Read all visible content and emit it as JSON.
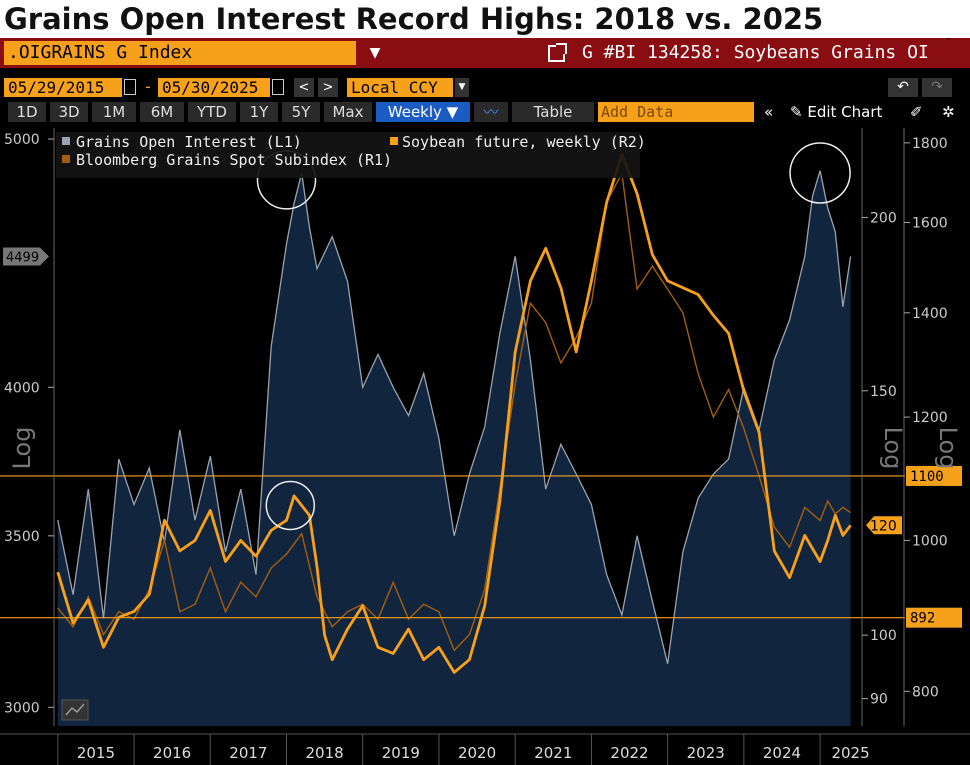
{
  "page_title": "Grains Open Interest Record Highs: 2018 vs. 2025",
  "header": {
    "ticker": ".OIGRAINS G Index",
    "security_title": "G #BI 134258: Soybeans Grains OI"
  },
  "dates": {
    "start": "05/29/2015",
    "end": "05/30/2025",
    "separator": "-"
  },
  "nav": {
    "prev": "<",
    "next": ">"
  },
  "currency": "Local CCY",
  "undo": "↶",
  "redo": "↷",
  "toolbar": {
    "periods": [
      "1D",
      "3D",
      "1M",
      "6M",
      "YTD",
      "1Y",
      "5Y",
      "Max"
    ],
    "frequency": "Weekly ▼",
    "table": "Table",
    "add_data_placeholder": "Add Data",
    "collapse": "«",
    "edit_chart": "✎ Edit Chart"
  },
  "chart_data": {
    "type": "line",
    "title": "Grains Open Interest Record Highs: 2018 vs. 2025",
    "x_labels": [
      "2015",
      "2016",
      "2017",
      "2018",
      "2019",
      "2020",
      "2021",
      "2022",
      "2023",
      "2024",
      "2025"
    ],
    "left_axis": {
      "label": "Log",
      "ticks": [
        "5000",
        "4000",
        "3500",
        "3000"
      ],
      "scale": "log",
      "range": [
        2950,
        5050
      ],
      "last_value": "4499"
    },
    "r2_axis": {
      "label": "Log",
      "ticks": [
        "200",
        "150",
        "100",
        "90"
      ],
      "scale": "log",
      "range": [
        86,
        232
      ],
      "last_value": "120"
    },
    "r1_axis": {
      "label": "Log",
      "ticks": [
        "1800",
        "1600",
        "1400",
        "1200",
        "1000",
        "800"
      ],
      "scale": "log",
      "range": [
        760,
        1840
      ],
      "last_value": "1042¼"
    },
    "horizontal_lines": [
      {
        "label": "1100",
        "value": 1100
      },
      {
        "label": "892",
        "value": 892
      }
    ],
    "legend_position": "top-left",
    "series": [
      {
        "name": "Grains Open Interest (L1)",
        "axis": "left",
        "color": "#9aa3ad",
        "fill": "#12253f",
        "points": [
          [
            2015.0,
            3550
          ],
          [
            2015.2,
            3320
          ],
          [
            2015.4,
            3650
          ],
          [
            2015.6,
            3250
          ],
          [
            2015.8,
            3750
          ],
          [
            2016.0,
            3600
          ],
          [
            2016.2,
            3720
          ],
          [
            2016.4,
            3480
          ],
          [
            2016.6,
            3850
          ],
          [
            2016.8,
            3550
          ],
          [
            2017.0,
            3760
          ],
          [
            2017.2,
            3450
          ],
          [
            2017.4,
            3650
          ],
          [
            2017.6,
            3380
          ],
          [
            2017.8,
            4150
          ],
          [
            2018.0,
            4550
          ],
          [
            2018.1,
            4720
          ],
          [
            2018.2,
            4850
          ],
          [
            2018.3,
            4620
          ],
          [
            2018.4,
            4450
          ],
          [
            2018.6,
            4580
          ],
          [
            2018.8,
            4400
          ],
          [
            2019.0,
            4000
          ],
          [
            2019.2,
            4120
          ],
          [
            2019.4,
            4000
          ],
          [
            2019.6,
            3900
          ],
          [
            2019.8,
            4050
          ],
          [
            2020.0,
            3820
          ],
          [
            2020.2,
            3500
          ],
          [
            2020.4,
            3700
          ],
          [
            2020.6,
            3860
          ],
          [
            2020.8,
            4200
          ],
          [
            2021.0,
            4500
          ],
          [
            2021.2,
            4100
          ],
          [
            2021.4,
            3650
          ],
          [
            2021.6,
            3800
          ],
          [
            2021.8,
            3700
          ],
          [
            2022.0,
            3600
          ],
          [
            2022.2,
            3380
          ],
          [
            2022.4,
            3260
          ],
          [
            2022.6,
            3500
          ],
          [
            2022.8,
            3300
          ],
          [
            2023.0,
            3120
          ],
          [
            2023.2,
            3450
          ],
          [
            2023.4,
            3620
          ],
          [
            2023.6,
            3700
          ],
          [
            2023.8,
            3750
          ],
          [
            2024.0,
            4000
          ],
          [
            2024.2,
            3850
          ],
          [
            2024.4,
            4100
          ],
          [
            2024.6,
            4250
          ],
          [
            2024.8,
            4500
          ],
          [
            2024.9,
            4750
          ],
          [
            2025.0,
            4860
          ],
          [
            2025.1,
            4700
          ],
          [
            2025.2,
            4600
          ],
          [
            2025.3,
            4300
          ],
          [
            2025.4,
            4500
          ]
        ]
      },
      {
        "name": "Soybean future, weekly (R2)",
        "axis": "r2",
        "color": "#f7a11a",
        "points": [
          [
            2015.0,
            111
          ],
          [
            2015.2,
            102
          ],
          [
            2015.4,
            106
          ],
          [
            2015.6,
            98
          ],
          [
            2015.8,
            103
          ],
          [
            2016.0,
            104
          ],
          [
            2016.2,
            107
          ],
          [
            2016.4,
            121
          ],
          [
            2016.6,
            115
          ],
          [
            2016.8,
            117
          ],
          [
            2017.0,
            123
          ],
          [
            2017.2,
            113
          ],
          [
            2017.4,
            117
          ],
          [
            2017.6,
            114
          ],
          [
            2017.8,
            119
          ],
          [
            2018.0,
            121
          ],
          [
            2018.1,
            126
          ],
          [
            2018.2,
            124
          ],
          [
            2018.3,
            122
          ],
          [
            2018.4,
            112
          ],
          [
            2018.5,
            100
          ],
          [
            2018.6,
            96
          ],
          [
            2018.8,
            101
          ],
          [
            2019.0,
            105
          ],
          [
            2019.2,
            98
          ],
          [
            2019.4,
            97
          ],
          [
            2019.6,
            101
          ],
          [
            2019.8,
            96
          ],
          [
            2020.0,
            98
          ],
          [
            2020.2,
            94
          ],
          [
            2020.4,
            96
          ],
          [
            2020.6,
            105
          ],
          [
            2020.8,
            125
          ],
          [
            2021.0,
            160
          ],
          [
            2021.2,
            180
          ],
          [
            2021.4,
            190
          ],
          [
            2021.6,
            178
          ],
          [
            2021.8,
            160
          ],
          [
            2022.0,
            180
          ],
          [
            2022.2,
            205
          ],
          [
            2022.4,
            222
          ],
          [
            2022.6,
            208
          ],
          [
            2022.8,
            188
          ],
          [
            2023.0,
            180
          ],
          [
            2023.2,
            178
          ],
          [
            2023.4,
            176
          ],
          [
            2023.6,
            170
          ],
          [
            2023.8,
            165
          ],
          [
            2024.0,
            150
          ],
          [
            2024.2,
            140
          ],
          [
            2024.4,
            115
          ],
          [
            2024.6,
            110
          ],
          [
            2024.8,
            118
          ],
          [
            2025.0,
            113
          ],
          [
            2025.1,
            117
          ],
          [
            2025.2,
            122
          ],
          [
            2025.3,
            118
          ],
          [
            2025.4,
            120
          ]
        ]
      },
      {
        "name": "Bloomberg Grains Spot Subindex (R1)",
        "axis": "r1",
        "color": "#a35e10",
        "points": [
          [
            2015.0,
            905
          ],
          [
            2015.2,
            880
          ],
          [
            2015.4,
            920
          ],
          [
            2015.6,
            870
          ],
          [
            2015.8,
            900
          ],
          [
            2016.0,
            890
          ],
          [
            2016.2,
            930
          ],
          [
            2016.4,
            1000
          ],
          [
            2016.6,
            900
          ],
          [
            2016.8,
            910
          ],
          [
            2017.0,
            960
          ],
          [
            2017.2,
            900
          ],
          [
            2017.4,
            940
          ],
          [
            2017.6,
            920
          ],
          [
            2017.8,
            960
          ],
          [
            2018.0,
            980
          ],
          [
            2018.2,
            1010
          ],
          [
            2018.4,
            920
          ],
          [
            2018.6,
            880
          ],
          [
            2018.8,
            900
          ],
          [
            2019.0,
            910
          ],
          [
            2019.2,
            890
          ],
          [
            2019.4,
            940
          ],
          [
            2019.6,
            890
          ],
          [
            2019.8,
            910
          ],
          [
            2020.0,
            900
          ],
          [
            2020.2,
            850
          ],
          [
            2020.4,
            870
          ],
          [
            2020.6,
            930
          ],
          [
            2020.8,
            1080
          ],
          [
            2021.0,
            1260
          ],
          [
            2021.2,
            1420
          ],
          [
            2021.4,
            1380
          ],
          [
            2021.6,
            1300
          ],
          [
            2021.8,
            1350
          ],
          [
            2022.0,
            1420
          ],
          [
            2022.2,
            1650
          ],
          [
            2022.4,
            1720
          ],
          [
            2022.6,
            1450
          ],
          [
            2022.8,
            1500
          ],
          [
            2023.0,
            1450
          ],
          [
            2023.2,
            1400
          ],
          [
            2023.4,
            1280
          ],
          [
            2023.6,
            1200
          ],
          [
            2023.8,
            1250
          ],
          [
            2024.0,
            1180
          ],
          [
            2024.2,
            1100
          ],
          [
            2024.4,
            1020
          ],
          [
            2024.6,
            990
          ],
          [
            2024.8,
            1050
          ],
          [
            2025.0,
            1030
          ],
          [
            2025.1,
            1060
          ],
          [
            2025.2,
            1040
          ],
          [
            2025.3,
            1050
          ],
          [
            2025.4,
            1042
          ]
        ]
      }
    ]
  }
}
